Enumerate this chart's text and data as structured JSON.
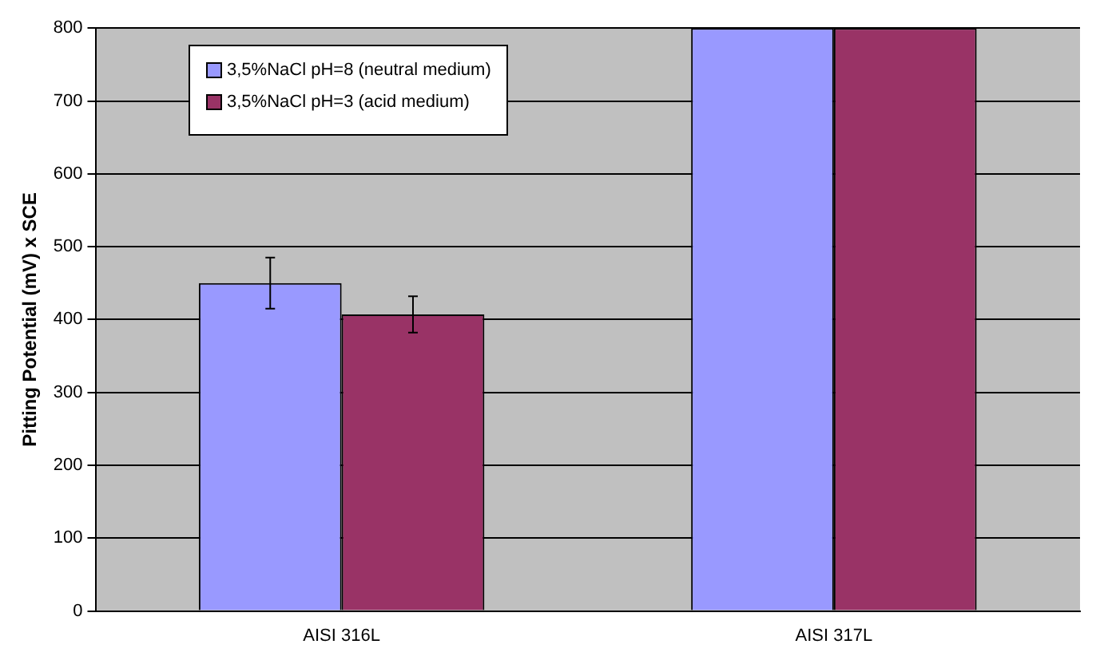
{
  "chart_data": {
    "type": "bar",
    "ylabel": "Pitting Potential (mV) x SCE",
    "categories": [
      "AISI 316L",
      "AISI 317L"
    ],
    "series": [
      {
        "name": "3,5%NaCl pH=8 (neutral medium)",
        "color": "#9999ff",
        "values": [
          450,
          800
        ],
        "errors": [
          35,
          null
        ]
      },
      {
        "name": "3,5%NaCl pH=3 (acid medium)",
        "color": "#993366",
        "values": [
          407,
          800
        ],
        "errors": [
          25,
          null
        ]
      }
    ],
    "ylim": [
      0,
      800
    ],
    "yticks": [
      0,
      100,
      200,
      300,
      400,
      500,
      600,
      700,
      800
    ],
    "grid": "y",
    "legend": "top left"
  }
}
